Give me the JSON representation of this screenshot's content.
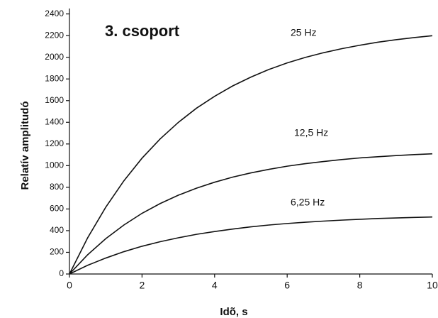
{
  "chart_data": {
    "type": "line",
    "title": "3. csoport",
    "x_label": "Idõ, s",
    "y_label": "Relatív amplitudó",
    "x": [
      0,
      0.5,
      1,
      1.5,
      2,
      2.5,
      3,
      3.5,
      4,
      4.5,
      5,
      5.5,
      6,
      6.5,
      7,
      7.5,
      8,
      8.5,
      9,
      9.5,
      10
    ],
    "series": [
      {
        "name": "25 Hz",
        "color": "#111111",
        "values": [
          0,
          333,
          616,
          860,
          1069,
          1247,
          1399,
          1530,
          1640,
          1736,
          1817,
          1888,
          1948,
          1999,
          2042,
          2079,
          2111,
          2139,
          2162,
          2182,
          2199
        ]
      },
      {
        "name": "12,5 Hz",
        "color": "#111111",
        "values": [
          0,
          177,
          326,
          452,
          560,
          650,
          727,
          792,
          847,
          894,
          933,
          966,
          995,
          1018,
          1038,
          1056,
          1071,
          1082,
          1093,
          1102,
          1109
        ]
      },
      {
        "name": "6,25 Hz",
        "color": "#111111",
        "values": [
          0,
          80,
          147,
          206,
          256,
          298,
          334,
          366,
          392,
          415,
          435,
          452,
          466,
          478,
          488,
          497,
          505,
          512,
          517,
          522,
          526
        ]
      }
    ],
    "xlim": [
      0,
      10
    ],
    "xticks": [
      0,
      2,
      4,
      6,
      8,
      10
    ],
    "ylim": [
      0,
      2450
    ],
    "yticks": [
      0,
      200,
      400,
      600,
      800,
      1000,
      1200,
      1400,
      1600,
      1800,
      2000,
      2200,
      2400
    ],
    "grid": false
  }
}
